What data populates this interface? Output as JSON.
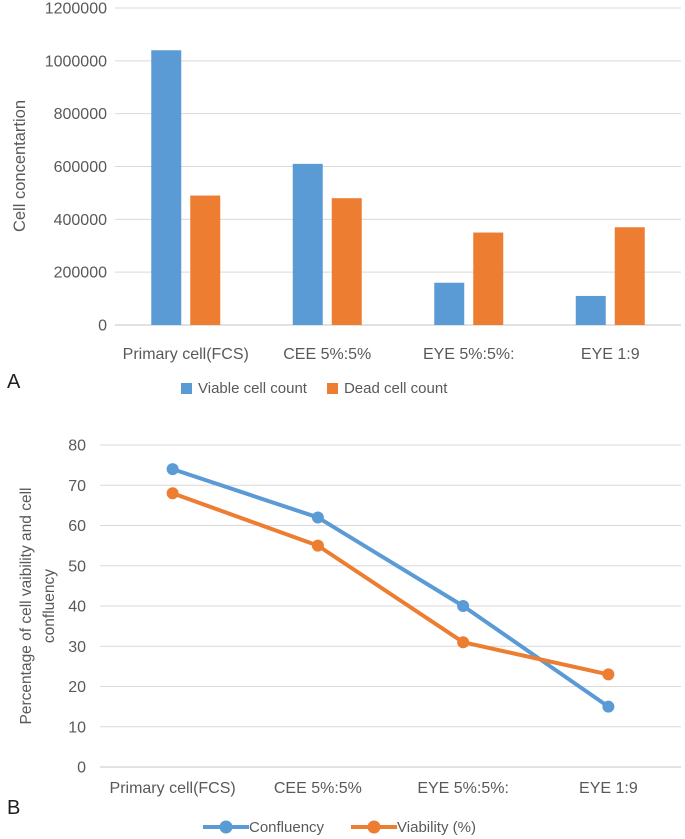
{
  "figure": {
    "panels": [
      {
        "label": "A"
      },
      {
        "label": "B"
      }
    ]
  },
  "chart_data": [
    {
      "type": "bar",
      "panel": "A",
      "ylabel": "Cell concentartion",
      "categories": [
        "Primary cell(FCS)",
        "CEE 5%:5%",
        "EYE 5%:5%:",
        "EYE 1:9"
      ],
      "series": [
        {
          "name": "Viable cell count",
          "color": "#5B9BD5",
          "values": [
            1040000,
            610000,
            160000,
            110000
          ]
        },
        {
          "name": "Dead cell count",
          "color": "#ED7D31",
          "values": [
            490000,
            480000,
            350000,
            370000
          ]
        }
      ],
      "ylim": [
        0,
        1200000
      ],
      "ytick_step": 200000,
      "ytick_labels": [
        "0",
        "200000",
        "400000",
        "600000",
        "800000",
        "1000000",
        "1200000"
      ],
      "grid": true,
      "legend_position": "bottom"
    },
    {
      "type": "line",
      "panel": "B",
      "ylabel": "Percentage of cell vaibility and cell confluency",
      "ylabel_lines": [
        "Percentage of cell vaibility and cell",
        "confluency"
      ],
      "categories": [
        "Primary cell(FCS)",
        "CEE 5%:5%",
        "EYE 5%:5%:",
        "EYE 1:9"
      ],
      "series": [
        {
          "name": "Confluency",
          "color": "#5B9BD5",
          "values": [
            74,
            62,
            40,
            15
          ]
        },
        {
          "name": "Viability (%)",
          "color": "#ED7D31",
          "values": [
            68,
            55,
            31,
            23
          ]
        }
      ],
      "ylim": [
        0,
        80
      ],
      "ytick_step": 10,
      "ytick_labels": [
        "0",
        "10",
        "20",
        "30",
        "40",
        "50",
        "60",
        "70",
        "80"
      ],
      "grid": true,
      "legend_position": "bottom"
    }
  ],
  "colors": {
    "series_blue": "#5B9BD5",
    "series_orange": "#ED7D31",
    "gridline": "#D9D9D9",
    "axis_line": "#C6C6C6",
    "label_text": "#595959",
    "panel_label_text": "#1F1F1F",
    "background": "#FFFFFF"
  }
}
